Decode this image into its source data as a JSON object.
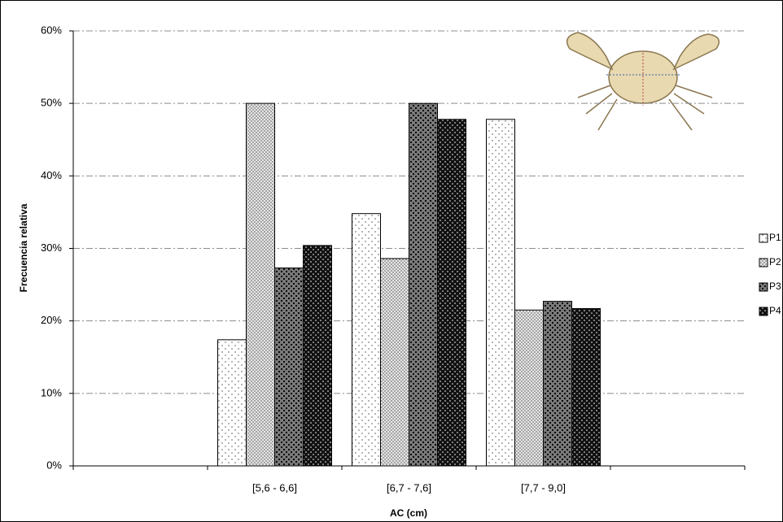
{
  "chart_data": {
    "type": "bar",
    "x_label": "AC (cm)",
    "y_label": "Frecuencia relativa",
    "categories": [
      null,
      "[5,6 - 6,6]",
      "[6,7 - 7,6]",
      "[7,7 - 9,0]",
      null
    ],
    "series": [
      {
        "name": "P1",
        "color": "#ffffff",
        "values": [
          null,
          17.4,
          34.8,
          47.8,
          null
        ]
      },
      {
        "name": "P2",
        "color": "#e6e6e6",
        "values": [
          null,
          50,
          28.6,
          21.5,
          null
        ]
      },
      {
        "name": "P3",
        "color": "#7a7a7a",
        "values": [
          null,
          27.3,
          50,
          22.7,
          null
        ]
      },
      {
        "name": "P4",
        "color": "#111111",
        "values": [
          null,
          30.4,
          47.8,
          21.7,
          null
        ]
      }
    ],
    "ylim": [
      0,
      60
    ],
    "yticks": [
      {
        "value": 0,
        "label": "0%"
      },
      {
        "value": 10,
        "label": "10%"
      },
      {
        "value": 20,
        "label": "20%"
      },
      {
        "value": 30,
        "label": "30%"
      },
      {
        "value": 40,
        "label": "40%"
      },
      {
        "value": 50,
        "label": "50%"
      },
      {
        "value": 60,
        "label": "60%"
      }
    ],
    "grid": true,
    "legend": "right"
  }
}
